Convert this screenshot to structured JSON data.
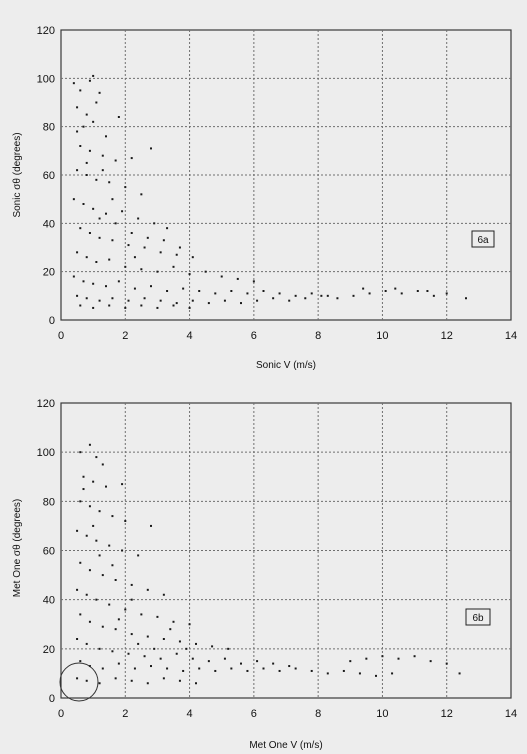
{
  "chart_data": [
    {
      "type": "scatter",
      "panel_label": "6a",
      "xlabel": "Sonic V (m/s)",
      "ylabel": "Sonic σθ (degrees)",
      "xlim": [
        0,
        14
      ],
      "ylim": [
        0,
        120
      ],
      "xticks": [
        0,
        2,
        4,
        6,
        8,
        10,
        12,
        14
      ],
      "yticks": [
        0,
        20,
        40,
        60,
        80,
        100,
        120
      ],
      "grid": true,
      "marker_color": "#1a1a1a",
      "points": [
        [
          0.4,
          98
        ],
        [
          0.6,
          95
        ],
        [
          0.9,
          99
        ],
        [
          1.0,
          101
        ],
        [
          1.2,
          94
        ],
        [
          0.5,
          88
        ],
        [
          0.8,
          85
        ],
        [
          1.1,
          90
        ],
        [
          0.5,
          78
        ],
        [
          0.7,
          80
        ],
        [
          1.0,
          82
        ],
        [
          1.4,
          76
        ],
        [
          1.8,
          84
        ],
        [
          0.6,
          72
        ],
        [
          0.9,
          70
        ],
        [
          1.3,
          68
        ],
        [
          1.7,
          66
        ],
        [
          2.2,
          67
        ],
        [
          2.8,
          71
        ],
        [
          0.5,
          62
        ],
        [
          0.8,
          60
        ],
        [
          1.1,
          58
        ],
        [
          1.5,
          57
        ],
        [
          2.0,
          55
        ],
        [
          2.5,
          52
        ],
        [
          0.4,
          50
        ],
        [
          0.7,
          48
        ],
        [
          1.0,
          46
        ],
        [
          1.4,
          44
        ],
        [
          1.9,
          45
        ],
        [
          2.4,
          42
        ],
        [
          2.9,
          40
        ],
        [
          3.3,
          38
        ],
        [
          0.6,
          38
        ],
        [
          0.9,
          36
        ],
        [
          1.2,
          34
        ],
        [
          1.6,
          33
        ],
        [
          2.1,
          31
        ],
        [
          2.6,
          30
        ],
        [
          3.1,
          28
        ],
        [
          3.6,
          27
        ],
        [
          4.1,
          26
        ],
        [
          0.5,
          28
        ],
        [
          0.8,
          26
        ],
        [
          1.1,
          24
        ],
        [
          1.5,
          25
        ],
        [
          2.0,
          22
        ],
        [
          2.5,
          21
        ],
        [
          3.0,
          20
        ],
        [
          3.5,
          22
        ],
        [
          4.0,
          19
        ],
        [
          4.5,
          20
        ],
        [
          5.0,
          18
        ],
        [
          5.5,
          17
        ],
        [
          6.0,
          16
        ],
        [
          0.4,
          18
        ],
        [
          0.7,
          16
        ],
        [
          1.0,
          15
        ],
        [
          1.4,
          14
        ],
        [
          1.8,
          16
        ],
        [
          2.3,
          13
        ],
        [
          2.8,
          14
        ],
        [
          3.3,
          12
        ],
        [
          3.8,
          13
        ],
        [
          4.3,
          12
        ],
        [
          4.8,
          11
        ],
        [
          5.3,
          12
        ],
        [
          5.8,
          11
        ],
        [
          6.3,
          12
        ],
        [
          6.8,
          11
        ],
        [
          7.3,
          10
        ],
        [
          7.8,
          11
        ],
        [
          8.3,
          10
        ],
        [
          0.5,
          10
        ],
        [
          0.8,
          9
        ],
        [
          1.2,
          8
        ],
        [
          1.6,
          9
        ],
        [
          2.1,
          8
        ],
        [
          2.6,
          9
        ],
        [
          3.1,
          8
        ],
        [
          3.6,
          7
        ],
        [
          4.1,
          8
        ],
        [
          4.6,
          7
        ],
        [
          5.1,
          8
        ],
        [
          5.6,
          7
        ],
        [
          6.1,
          8
        ],
        [
          6.6,
          9
        ],
        [
          7.1,
          8
        ],
        [
          7.6,
          9
        ],
        [
          8.1,
          10
        ],
        [
          8.6,
          9
        ],
        [
          9.1,
          10
        ],
        [
          9.6,
          11
        ],
        [
          10.1,
          12
        ],
        [
          10.6,
          11
        ],
        [
          11.1,
          12
        ],
        [
          11.6,
          10
        ],
        [
          12.0,
          11
        ],
        [
          12.6,
          9
        ],
        [
          9.4,
          13
        ],
        [
          10.4,
          13
        ],
        [
          11.4,
          12
        ],
        [
          0.6,
          6
        ],
        [
          1.0,
          5
        ],
        [
          1.5,
          6
        ],
        [
          2.0,
          5
        ],
        [
          2.5,
          6
        ],
        [
          3.0,
          5
        ],
        [
          3.5,
          6
        ],
        [
          4.0,
          5
        ],
        [
          1.2,
          42
        ],
        [
          1.6,
          50
        ],
        [
          2.2,
          36
        ],
        [
          2.7,
          34
        ],
        [
          3.2,
          33
        ],
        [
          3.7,
          30
        ],
        [
          1.3,
          62
        ],
        [
          0.8,
          65
        ],
        [
          1.7,
          40
        ],
        [
          2.3,
          26
        ]
      ]
    },
    {
      "type": "scatter",
      "panel_label": "6b",
      "xlabel": "Met One V (m/s)",
      "ylabel": "Met One σθ (degrees)",
      "xlim": [
        0,
        14
      ],
      "ylim": [
        0,
        120
      ],
      "xticks": [
        0,
        2,
        4,
        6,
        8,
        10,
        12,
        14
      ],
      "yticks": [
        0,
        20,
        40,
        60,
        80,
        100,
        120
      ],
      "grid": true,
      "marker_color": "#1a1a1a",
      "points": [
        [
          0.6,
          100
        ],
        [
          0.9,
          103
        ],
        [
          1.1,
          98
        ],
        [
          1.3,
          95
        ],
        [
          0.7,
          90
        ],
        [
          1.0,
          88
        ],
        [
          1.4,
          86
        ],
        [
          1.9,
          87
        ],
        [
          0.6,
          80
        ],
        [
          0.9,
          78
        ],
        [
          1.2,
          76
        ],
        [
          1.6,
          74
        ],
        [
          2.0,
          72
        ],
        [
          2.8,
          70
        ],
        [
          0.5,
          68
        ],
        [
          0.8,
          66
        ],
        [
          1.1,
          64
        ],
        [
          1.5,
          62
        ],
        [
          1.9,
          60
        ],
        [
          2.4,
          58
        ],
        [
          0.6,
          55
        ],
        [
          0.9,
          52
        ],
        [
          1.3,
          50
        ],
        [
          1.7,
          48
        ],
        [
          2.2,
          46
        ],
        [
          2.7,
          44
        ],
        [
          3.2,
          42
        ],
        [
          0.5,
          44
        ],
        [
          0.8,
          42
        ],
        [
          1.1,
          40
        ],
        [
          1.5,
          38
        ],
        [
          2.0,
          36
        ],
        [
          2.5,
          34
        ],
        [
          3.0,
          33
        ],
        [
          3.5,
          31
        ],
        [
          4.0,
          30
        ],
        [
          0.6,
          34
        ],
        [
          0.9,
          31
        ],
        [
          1.3,
          29
        ],
        [
          1.7,
          28
        ],
        [
          2.2,
          26
        ],
        [
          2.7,
          25
        ],
        [
          3.2,
          24
        ],
        [
          3.7,
          23
        ],
        [
          4.2,
          22
        ],
        [
          4.7,
          21
        ],
        [
          5.2,
          20
        ],
        [
          0.5,
          24
        ],
        [
          0.8,
          22
        ],
        [
          1.2,
          20
        ],
        [
          1.6,
          19
        ],
        [
          2.1,
          18
        ],
        [
          2.6,
          17
        ],
        [
          3.1,
          16
        ],
        [
          3.6,
          18
        ],
        [
          4.1,
          16
        ],
        [
          4.6,
          15
        ],
        [
          5.1,
          16
        ],
        [
          5.6,
          14
        ],
        [
          6.1,
          15
        ],
        [
          6.6,
          14
        ],
        [
          7.1,
          13
        ],
        [
          0.6,
          15
        ],
        [
          0.9,
          13
        ],
        [
          1.3,
          12
        ],
        [
          1.8,
          14
        ],
        [
          2.3,
          12
        ],
        [
          2.8,
          13
        ],
        [
          3.3,
          12
        ],
        [
          3.8,
          11
        ],
        [
          4.3,
          12
        ],
        [
          4.8,
          11
        ],
        [
          5.3,
          12
        ],
        [
          5.8,
          11
        ],
        [
          6.3,
          12
        ],
        [
          6.8,
          11
        ],
        [
          7.3,
          12
        ],
        [
          7.8,
          11
        ],
        [
          8.3,
          10
        ],
        [
          8.8,
          11
        ],
        [
          9.3,
          10
        ],
        [
          9.8,
          9
        ],
        [
          10.3,
          10
        ],
        [
          0.5,
          8
        ],
        [
          0.8,
          7
        ],
        [
          1.2,
          6
        ],
        [
          1.7,
          8
        ],
        [
          2.2,
          7
        ],
        [
          2.7,
          6
        ],
        [
          3.2,
          8
        ],
        [
          3.7,
          7
        ],
        [
          4.2,
          6
        ],
        [
          9.0,
          15
        ],
        [
          9.5,
          16
        ],
        [
          10.0,
          17
        ],
        [
          10.5,
          16
        ],
        [
          11.0,
          17
        ],
        [
          11.5,
          15
        ],
        [
          12.0,
          14
        ],
        [
          12.4,
          10
        ],
        [
          1.2,
          58
        ],
        [
          1.8,
          32
        ],
        [
          2.4,
          22
        ],
        [
          2.9,
          20
        ],
        [
          3.4,
          28
        ],
        [
          1.0,
          70
        ],
        [
          0.7,
          85
        ],
        [
          1.6,
          54
        ],
        [
          2.2,
          40
        ],
        [
          3.9,
          20
        ]
      ]
    }
  ]
}
